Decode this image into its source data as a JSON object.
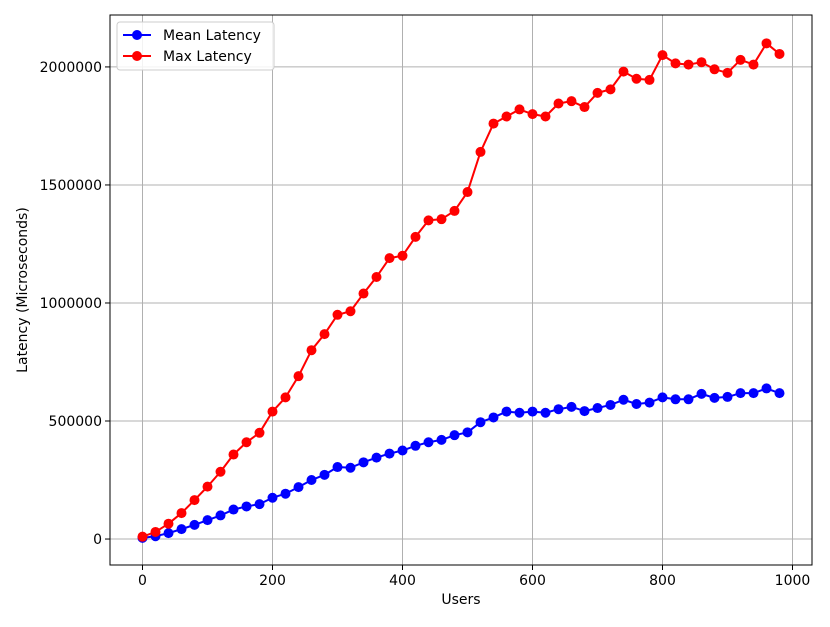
{
  "chart_data": {
    "type": "line",
    "xlabel": "Users",
    "ylabel": "Latency (Microseconds)",
    "xlim": [
      -50,
      1030
    ],
    "ylim": [
      -110000,
      2220000
    ],
    "xticks": [
      0,
      200,
      400,
      600,
      800,
      1000
    ],
    "yticks": [
      0,
      500000,
      1000000,
      1500000,
      2000000
    ],
    "grid": true,
    "legend_position": "top-left",
    "x": [
      0,
      20,
      40,
      60,
      80,
      100,
      120,
      140,
      160,
      180,
      200,
      220,
      240,
      260,
      280,
      300,
      320,
      340,
      360,
      380,
      400,
      420,
      440,
      460,
      480,
      500,
      520,
      540,
      560,
      580,
      600,
      620,
      640,
      660,
      680,
      700,
      720,
      740,
      760,
      780,
      800,
      820,
      840,
      860,
      880,
      900,
      920,
      940,
      960,
      980
    ],
    "series": [
      {
        "name": "Mean Latency",
        "color": "#0000ff",
        "values": [
          5000,
          12000,
          25000,
          42000,
          60000,
          80000,
          100000,
          125000,
          138000,
          148000,
          175000,
          192000,
          220000,
          250000,
          272000,
          305000,
          302000,
          325000,
          345000,
          362000,
          375000,
          395000,
          410000,
          420000,
          440000,
          452000,
          495000,
          515000,
          540000,
          535000,
          540000,
          535000,
          550000,
          560000,
          542000,
          555000,
          568000,
          590000,
          572000,
          578000,
          600000,
          592000,
          592000,
          615000,
          598000,
          602000,
          618000,
          618000,
          638000,
          618000
        ]
      },
      {
        "name": "Max Latency",
        "color": "#ff0000",
        "values": [
          10000,
          30000,
          65000,
          110000,
          165000,
          222000,
          285000,
          358000,
          410000,
          450000,
          540000,
          600000,
          690000,
          800000,
          868000,
          950000,
          965000,
          1040000,
          1110000,
          1190000,
          1200000,
          1280000,
          1350000,
          1355000,
          1390000,
          1470000,
          1640000,
          1760000,
          1790000,
          1820000,
          1800000,
          1790000,
          1845000,
          1855000,
          1830000,
          1890000,
          1905000,
          1980000,
          1950000,
          1945000,
          2050000,
          2015000,
          2010000,
          2020000,
          1990000,
          1975000,
          2030000,
          2010000,
          2100000,
          2055000
        ]
      }
    ]
  }
}
